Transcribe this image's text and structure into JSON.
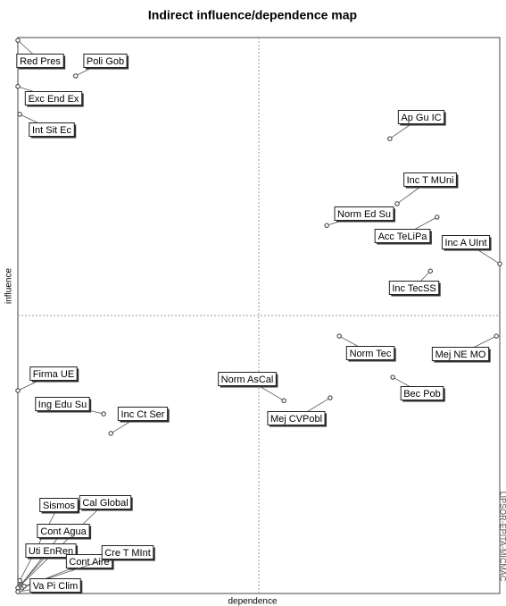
{
  "chart_data": {
    "type": "scatter",
    "title": "Indirect influence/dependence map",
    "xlabel": "dependence",
    "ylabel": "influence",
    "watermark": "LIPSOR-EPITA-MICMAC",
    "xlim": [
      0,
      100
    ],
    "ylim": [
      0,
      100
    ],
    "labels": [
      "Red Pres",
      "Poli Gob",
      "Exc End Ex",
      "Int Sit Ec",
      "Ap Gu IC",
      "Inc T MUni",
      "Norm Ed Su",
      "Acc TeLiPa",
      "Inc A UInt",
      "Inc TecSS",
      "Norm Tec",
      "Mej NE MO",
      "Bec Pob",
      "Norm AsCal",
      "Mej CVPobl",
      "Firma UE",
      "Ing Edu Su",
      "Inc Ct Ser",
      "Sismos",
      "Cal Global",
      "Cont Agua",
      "Uti EnRen",
      "Cont Aire",
      "Cre T MInt",
      "Va Pi Clim"
    ],
    "x": [
      0,
      12,
      0,
      0.4,
      77.2,
      78.7,
      64.1,
      87,
      100,
      85.6,
      66.7,
      99.3,
      77.8,
      55.2,
      64.8,
      0,
      17.8,
      19.3,
      0.4,
      0.7,
      0.4,
      0,
      0.9,
      1.3,
      0
    ],
    "values": [
      99.5,
      93.1,
      91.2,
      86.2,
      81.8,
      70.1,
      66.2,
      67.7,
      59.3,
      58,
      46.3,
      46.3,
      38.9,
      34.7,
      35.2,
      36.5,
      32.3,
      28.8,
      2.3,
      1.6,
      1.3,
      1,
      1,
      1.3,
      0.3
    ]
  }
}
